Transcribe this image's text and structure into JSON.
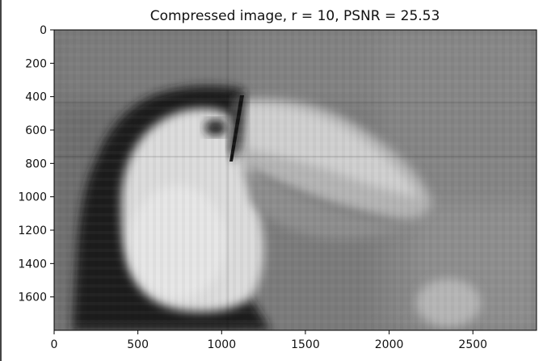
{
  "chart_data": {
    "type": "image",
    "title": "Compressed image, r = 10, PSNR = 25.53",
    "x_ticks": [
      0,
      500,
      1000,
      1500,
      2000,
      2500
    ],
    "y_ticks": [
      0,
      200,
      400,
      600,
      800,
      1000,
      1200,
      1400,
      1600
    ],
    "xlim": [
      0,
      2880
    ],
    "ylim": [
      1800,
      0
    ],
    "colormap": "gray",
    "image_subject": "toucan",
    "rank": 10,
    "psnr": 25.53
  }
}
